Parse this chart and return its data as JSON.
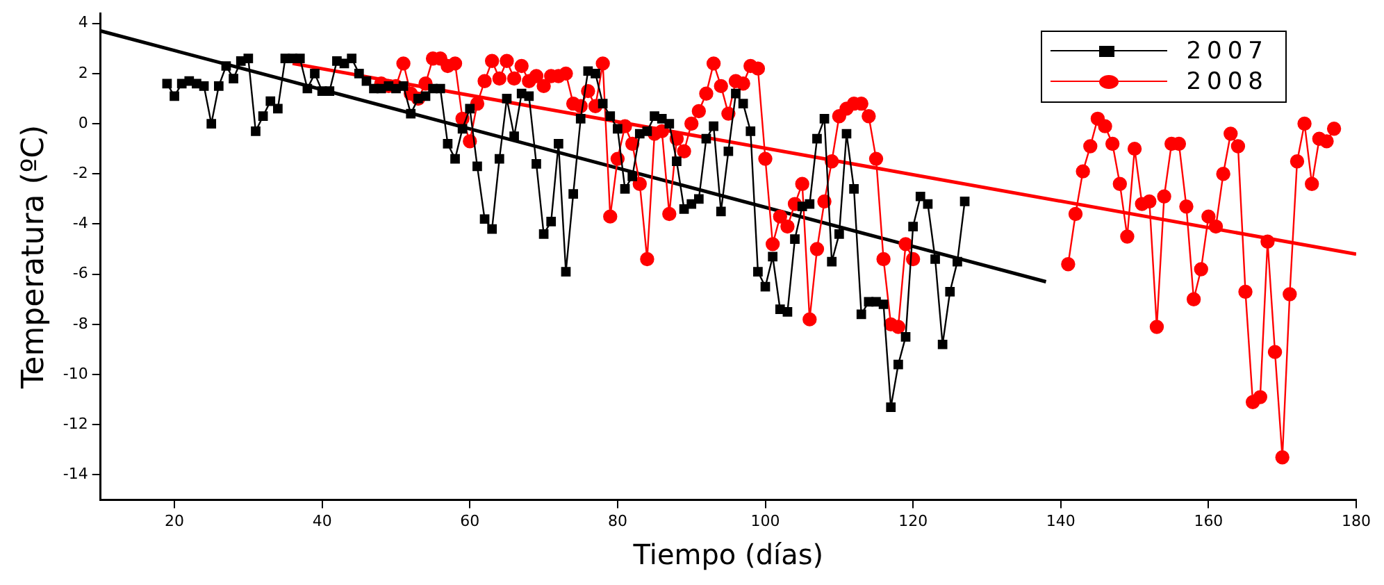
{
  "chart_data": {
    "type": "line",
    "xlabel": "Tiempo (días)",
    "ylabel": "Temperatura (ºC)",
    "xlim": [
      10,
      180
    ],
    "ylim": [
      -15,
      4.4
    ],
    "xticks": [
      20,
      40,
      60,
      80,
      100,
      120,
      140,
      160,
      180
    ],
    "yticks": [
      -14,
      -12,
      -10,
      -8,
      -6,
      -4,
      -2,
      0,
      2,
      4
    ],
    "grid": false,
    "legend": "top right",
    "series": [
      {
        "name": "2007",
        "color": "#000000",
        "marker": "square",
        "x": [
          19,
          20,
          21,
          22,
          23,
          24,
          25,
          26,
          27,
          28,
          29,
          30,
          31,
          32,
          33,
          34,
          35,
          36,
          37,
          38,
          39,
          40,
          41,
          42,
          43,
          44,
          45,
          46,
          47,
          48,
          49,
          50,
          51,
          52,
          53,
          54,
          55,
          56,
          57,
          58,
          59,
          60,
          61,
          62,
          63,
          64,
          65,
          66,
          67,
          68,
          69,
          70,
          71,
          72,
          73,
          74,
          75,
          76,
          77,
          78,
          79,
          80,
          81,
          82,
          83,
          84,
          85,
          86,
          87,
          88,
          89,
          90,
          91,
          92,
          93,
          94,
          95,
          96,
          97,
          98,
          99,
          100,
          101,
          102,
          103,
          104,
          105,
          106,
          107,
          108,
          109,
          110,
          111,
          112,
          113,
          114,
          115,
          116,
          117,
          118,
          119,
          120,
          121,
          122,
          123,
          124,
          125,
          126,
          127
        ],
        "values": [
          1.6,
          1.1,
          1.6,
          1.7,
          1.6,
          1.5,
          0,
          1.5,
          2.3,
          1.8,
          2.5,
          2.6,
          -0.3,
          0.3,
          0.9,
          0.6,
          2.6,
          2.6,
          2.6,
          1.4,
          2.0,
          1.3,
          1.3,
          2.5,
          2.4,
          2.6,
          2.0,
          1.7,
          1.4,
          1.4,
          1.5,
          1.4,
          1.5,
          0.4,
          1.0,
          1.1,
          1.4,
          1.4,
          -0.8,
          -1.4,
          -0.2,
          0.6,
          -1.7,
          -3.8,
          -4.2,
          -1.4,
          1.0,
          -0.5,
          1.2,
          1.1,
          -1.6,
          -4.4,
          -3.9,
          -0.8,
          -5.9,
          -2.8,
          0.2,
          2.1,
          2.0,
          0.8,
          0.3,
          -0.2,
          -2.6,
          -2.1,
          -0.4,
          -0.3,
          0.3,
          0.2,
          0,
          -1.5,
          -3.4,
          -3.2,
          -3.0,
          -0.6,
          -0.1,
          -3.5,
          -1.1,
          1.2,
          0.8,
          -0.3,
          -5.9,
          -6.5,
          -5.3,
          -7.4,
          -7.5,
          -4.6,
          -3.3,
          -3.2,
          -0.6,
          0.2,
          -5.5,
          -4.4,
          -0.4,
          -2.6,
          -7.6,
          -7.1,
          -7.1,
          -7.2,
          -11.3,
          -9.6,
          -8.5,
          -4.1,
          -2.9,
          -3.2,
          -5.4,
          -8.8,
          -6.7,
          -5.5,
          -3.1
        ]
      },
      {
        "name": "2008",
        "color": "#ff0000",
        "marker": "circle",
        "x": [
          48,
          49,
          50,
          51,
          52,
          53,
          54,
          55,
          56,
          57,
          58,
          59,
          60,
          61,
          62,
          63,
          64,
          65,
          66,
          67,
          68,
          69,
          70,
          71,
          72,
          73,
          74,
          75,
          76,
          77,
          78,
          79,
          80,
          81,
          82,
          83,
          84,
          85,
          86,
          87,
          88,
          89,
          90,
          91,
          92,
          93,
          94,
          95,
          96,
          97,
          98,
          99,
          100,
          101,
          102,
          103,
          104,
          105,
          106,
          107,
          108,
          109,
          110,
          111,
          112,
          113,
          114,
          115,
          116,
          117,
          118,
          119,
          120,
          130,
          141,
          142,
          143,
          144,
          145,
          146,
          147,
          148,
          149,
          150,
          151,
          152,
          153,
          154,
          155,
          156,
          157,
          158,
          159,
          160,
          161,
          162,
          163,
          164,
          165,
          166,
          167,
          168,
          169,
          170,
          171,
          172,
          173,
          174,
          175,
          176,
          177
        ],
        "values": [
          1.6,
          1.5,
          1.5,
          2.4,
          1.2,
          1.0,
          1.6,
          2.6,
          2.6,
          2.3,
          2.4,
          0.2,
          -0.7,
          0.8,
          1.7,
          2.5,
          1.8,
          2.5,
          1.8,
          2.3,
          1.7,
          1.9,
          1.5,
          1.9,
          1.9,
          2.0,
          0.8,
          0.7,
          1.3,
          0.7,
          2.4,
          -3.7,
          -1.4,
          -0.1,
          -0.8,
          -2.4,
          -5.4,
          -0.4,
          -0.3,
          -3.6,
          -0.6,
          -1.1,
          0,
          0.5,
          1.2,
          2.4,
          1.5,
          0.4,
          1.7,
          1.6,
          2.3,
          2.2,
          -1.4,
          -4.8,
          -3.7,
          -4.1,
          -3.2,
          -2.4,
          -7.8,
          -5.0,
          -3.1,
          -1.5,
          0.3,
          0.6,
          0.8,
          0.8,
          0.3,
          -1.4,
          -5.4,
          -8.0,
          -8.1,
          -4.8,
          -5.4,
          null,
          -5.6,
          -3.6,
          -1.9,
          -0.9,
          0.2,
          -0.1,
          -0.8,
          -2.4,
          -4.5,
          -1.0,
          -3.2,
          -3.1,
          -8.1,
          -2.9,
          -0.8,
          -0.8,
          -3.3,
          -7.0,
          -5.8,
          -3.7,
          -4.1,
          -2.0,
          -0.4,
          -0.9,
          -6.7,
          -11.1,
          -10.9,
          -4.7,
          -9.1,
          -13.3,
          -6.8,
          -1.5,
          0,
          -2.4,
          -0.6,
          -0.7,
          -0.2
        ]
      },
      {
        "type": "line",
        "color": "#000000",
        "marker": "none",
        "x": [
          10,
          138
        ],
        "values": [
          3.7,
          -6.3
        ]
      },
      {
        "type": "line",
        "color": "#ff0000",
        "marker": "none",
        "x": [
          36,
          180
        ],
        "values": [
          2.4,
          -5.2
        ]
      }
    ]
  }
}
